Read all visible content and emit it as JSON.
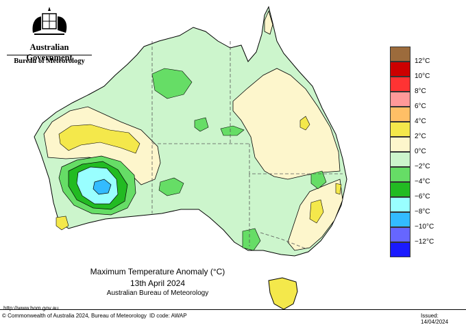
{
  "header": {
    "government": "Australian Government",
    "bureau": "Bureau of Meteorology",
    "logo_icon": "coat-of-arms-icon"
  },
  "map": {
    "title": "Maximum Temperature Anomaly (°C)",
    "date": "13th April 2024",
    "source": "Australian Bureau of Meteorology"
  },
  "legend": [
    {
      "label": "12°C",
      "color": "#9c6b3c"
    },
    {
      "label": "10°C",
      "color": "#cc0000"
    },
    {
      "label": "8°C",
      "color": "#ff3333"
    },
    {
      "label": "6°C",
      "color": "#ff9999"
    },
    {
      "label": "4°C",
      "color": "#ffbf66"
    },
    {
      "label": "2°C",
      "color": "#f4e84b"
    },
    {
      "label": "0°C",
      "color": "#fdf6cc"
    },
    {
      "label": "−2°C",
      "color": "#ccf5cc"
    },
    {
      "label": "−4°C",
      "color": "#66dd66"
    },
    {
      "label": "−6°C",
      "color": "#22bb22"
    },
    {
      "label": "−8°C",
      "color": "#99ffff"
    },
    {
      "label": "−10°C",
      "color": "#33bbff"
    },
    {
      "label": "−12°C",
      "color": "#6666ff"
    },
    {
      "label": "",
      "color": "#1a1aff"
    }
  ],
  "footer": {
    "url": "http://www.bom.gov.au",
    "copyright": "© Commonwealth of Australia 2024, Bureau of Meteorology",
    "id_code": "ID code: AWAP",
    "issued": "Issued: 14/04/2024"
  }
}
